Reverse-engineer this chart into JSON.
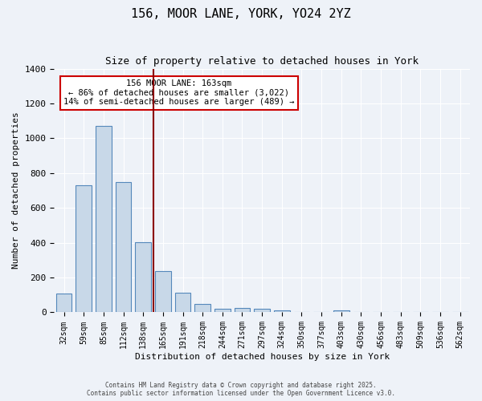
{
  "title1": "156, MOOR LANE, YORK, YO24 2YZ",
  "title2": "Size of property relative to detached houses in York",
  "xlabel": "Distribution of detached houses by size in York",
  "ylabel": "Number of detached properties",
  "categories": [
    "32sqm",
    "59sqm",
    "85sqm",
    "112sqm",
    "138sqm",
    "165sqm",
    "191sqm",
    "218sqm",
    "244sqm",
    "271sqm",
    "297sqm",
    "324sqm",
    "350sqm",
    "377sqm",
    "403sqm",
    "430sqm",
    "456sqm",
    "483sqm",
    "509sqm",
    "536sqm",
    "562sqm"
  ],
  "values": [
    110,
    730,
    1070,
    750,
    405,
    235,
    115,
    48,
    20,
    27,
    20,
    10,
    0,
    0,
    12,
    0,
    0,
    0,
    0,
    0,
    0
  ],
  "bar_color": "#c8d8e8",
  "bar_edge_color": "#5588bb",
  "annotation_text_line1": "156 MOOR LANE: 163sqm",
  "annotation_text_line2": "← 86% of detached houses are smaller (3,022)",
  "annotation_text_line3": "14% of semi-detached houses are larger (489) →",
  "annotation_box_color": "#ffffff",
  "annotation_box_edge_color": "#cc0000",
  "vline_index": 4.5,
  "vline_color": "#8b0000",
  "ylim": [
    0,
    1400
  ],
  "yticks": [
    0,
    200,
    400,
    600,
    800,
    1000,
    1200,
    1400
  ],
  "background_color": "#eef2f8",
  "grid_color": "#ffffff",
  "footer1": "Contains HM Land Registry data © Crown copyright and database right 2025.",
  "footer2": "Contains public sector information licensed under the Open Government Licence v3.0."
}
